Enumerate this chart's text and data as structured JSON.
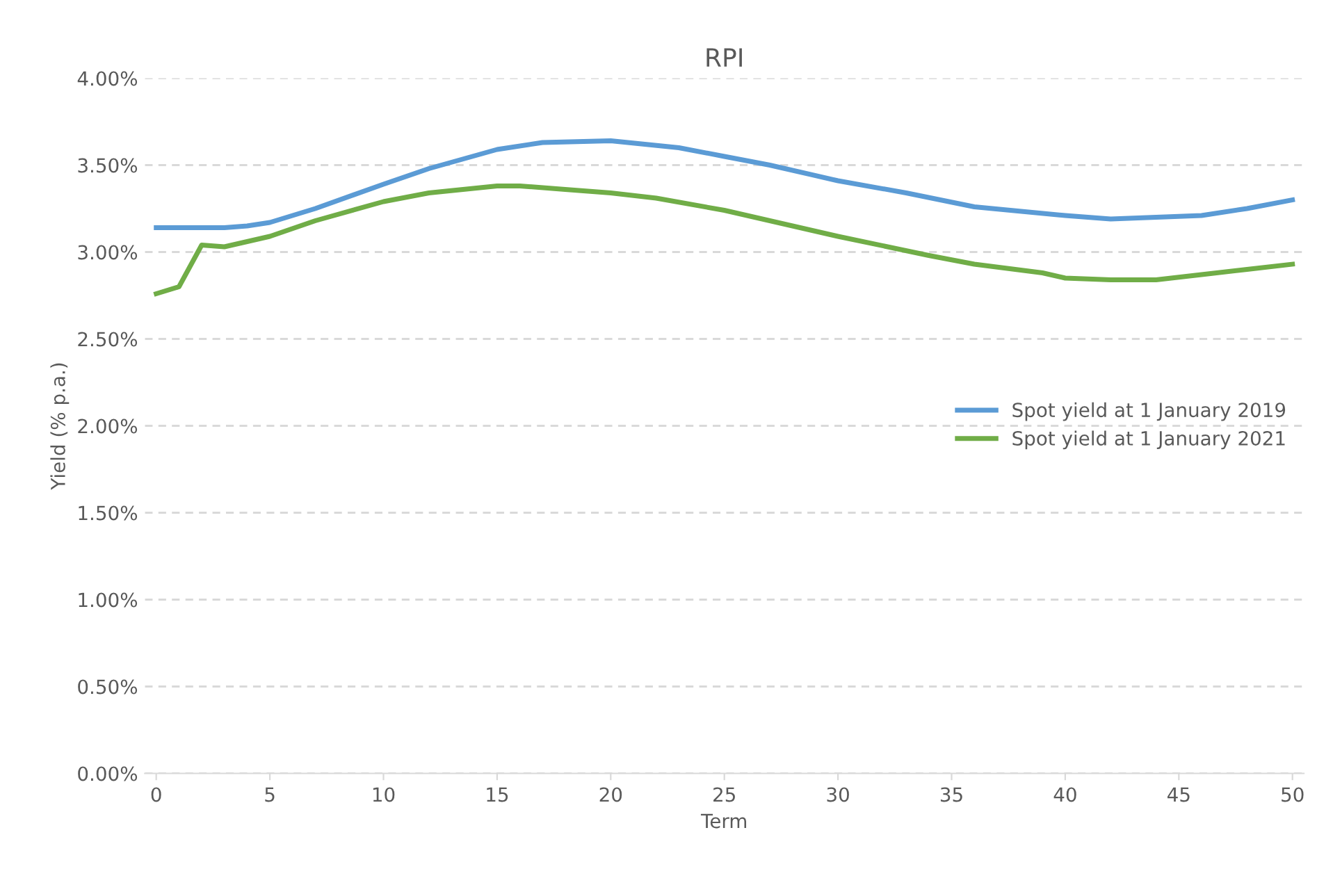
{
  "chart_data": {
    "type": "line",
    "title": "RPI",
    "xlabel": "Term",
    "ylabel": "Yield (% p.a.)",
    "xlim": [
      -0.5,
      50.5
    ],
    "xticks": [
      0,
      5,
      10,
      15,
      20,
      25,
      30,
      35,
      40,
      45,
      50
    ],
    "ylim": [
      0,
      4
    ],
    "yticks": [
      {
        "value": 0,
        "label": "0.00%"
      },
      {
        "value": 0.5,
        "label": "0.50%"
      },
      {
        "value": 1,
        "label": "1.00%"
      },
      {
        "value": 1.5,
        "label": "1.50%"
      },
      {
        "value": 2,
        "label": "2.00%"
      },
      {
        "value": 2.5,
        "label": "2.50%"
      },
      {
        "value": 3,
        "label": "3.00%"
      },
      {
        "value": 3.5,
        "label": "3.50%"
      },
      {
        "value": 4,
        "label": "4.00%"
      }
    ],
    "grid": "y",
    "legend": "right",
    "marker": "none",
    "line_style": "solid",
    "series": [
      {
        "name": "Spot yield at 1 January 2019",
        "color": "#5b9bd5",
        "x": [
          0,
          1,
          2,
          3,
          4,
          5,
          7,
          10,
          12,
          15,
          17,
          20,
          23,
          25,
          27,
          30,
          33,
          36,
          40,
          42,
          44,
          46,
          48,
          50
        ],
        "values": [
          3.14,
          3.14,
          3.14,
          3.14,
          3.15,
          3.17,
          3.25,
          3.39,
          3.48,
          3.59,
          3.63,
          3.64,
          3.6,
          3.55,
          3.5,
          3.41,
          3.34,
          3.26,
          3.21,
          3.19,
          3.2,
          3.21,
          3.25,
          3.3
        ]
      },
      {
        "name": "Spot yield at 1 January 2021",
        "color": "#70ad47",
        "x": [
          0,
          1,
          2,
          3,
          4,
          5,
          7,
          10,
          12,
          15,
          16,
          18,
          20,
          22,
          25,
          28,
          30,
          34,
          36,
          39,
          40,
          42,
          44,
          46,
          48,
          50
        ],
        "values": [
          2.76,
          2.8,
          3.04,
          3.03,
          3.06,
          3.09,
          3.18,
          3.29,
          3.34,
          3.38,
          3.38,
          3.36,
          3.34,
          3.31,
          3.24,
          3.15,
          3.09,
          2.98,
          2.93,
          2.88,
          2.85,
          2.84,
          2.84,
          2.87,
          2.9,
          2.93
        ]
      }
    ]
  }
}
